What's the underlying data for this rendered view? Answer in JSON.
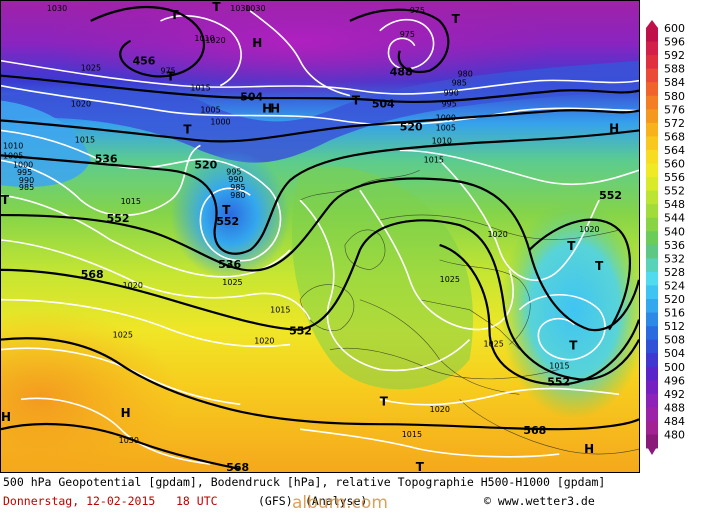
{
  "header_band": {
    "title": "500 hPa Geopotential [gpdam], Bodendruck [hPa], relative Topographie H500-H1000 [gpdam]"
  },
  "date_line": {
    "date": "Donnerstag, 12-02-2015",
    "time": "18 UTC",
    "model": "(GFS)",
    "run": "(Analyse)",
    "credit": "© www.wetter3.de"
  },
  "watermark": "alburn.com",
  "legend": {
    "values": [
      "600",
      "596",
      "592",
      "588",
      "584",
      "580",
      "576",
      "572",
      "568",
      "564",
      "560",
      "556",
      "552",
      "548",
      "544",
      "540",
      "536",
      "532",
      "528",
      "524",
      "520",
      "516",
      "512",
      "508",
      "504",
      "500",
      "496",
      "492",
      "488",
      "484",
      "480"
    ],
    "colors": [
      "#c0104a",
      "#d2204a",
      "#e03040",
      "#ea4a36",
      "#f0642c",
      "#f37e24",
      "#f5981e",
      "#f7b21c",
      "#f9c81e",
      "#f7dc22",
      "#f0ea26",
      "#d8ea2a",
      "#bce432",
      "#a2dc3a",
      "#88d444",
      "#6ccc5a",
      "#5cc884",
      "#58d2b8",
      "#50dcee",
      "#3ec4f2",
      "#34a8ee",
      "#2c8ae6",
      "#2a6ce0",
      "#3050d8",
      "#4036d0",
      "#5a24ca",
      "#7620c2",
      "#8c22b8",
      "#9c22a8",
      "#a22294",
      "#8a1a7a"
    ]
  },
  "geopotential_labels": [
    "456",
    "504",
    "504",
    "520",
    "520",
    "536",
    "536",
    "552",
    "552",
    "552",
    "552",
    "568",
    "568",
    "568",
    "552",
    "488"
  ],
  "pressure_labels": [
    "1030",
    "1025",
    "1020",
    "1015",
    "1010",
    "1005",
    "1000",
    "995",
    "990",
    "985",
    "975",
    "1030",
    "1020",
    "1015",
    "1010",
    "1005",
    "1000",
    "995",
    "990",
    "985",
    "980",
    "975",
    "1015",
    "1020",
    "1025",
    "1030",
    "1025",
    "1020",
    "1015",
    "1015",
    "1020",
    "1025",
    "1010",
    "1005",
    "1000",
    "995",
    "990",
    "985",
    "980",
    "975",
    "1030",
    "1020",
    "1015",
    "1025",
    "1020",
    "1015"
  ],
  "pressure_centers": [
    "T",
    "T",
    "H",
    "H",
    "T",
    "T",
    "T",
    "H",
    "T",
    "H",
    "T",
    "T",
    "T",
    "T",
    "H",
    "T",
    "H",
    "T",
    "T",
    "H"
  ],
  "colors": {
    "background": "#ffffff",
    "isobar": "#ffffff",
    "geopotential": "#000000",
    "date_text": "#c00000"
  }
}
